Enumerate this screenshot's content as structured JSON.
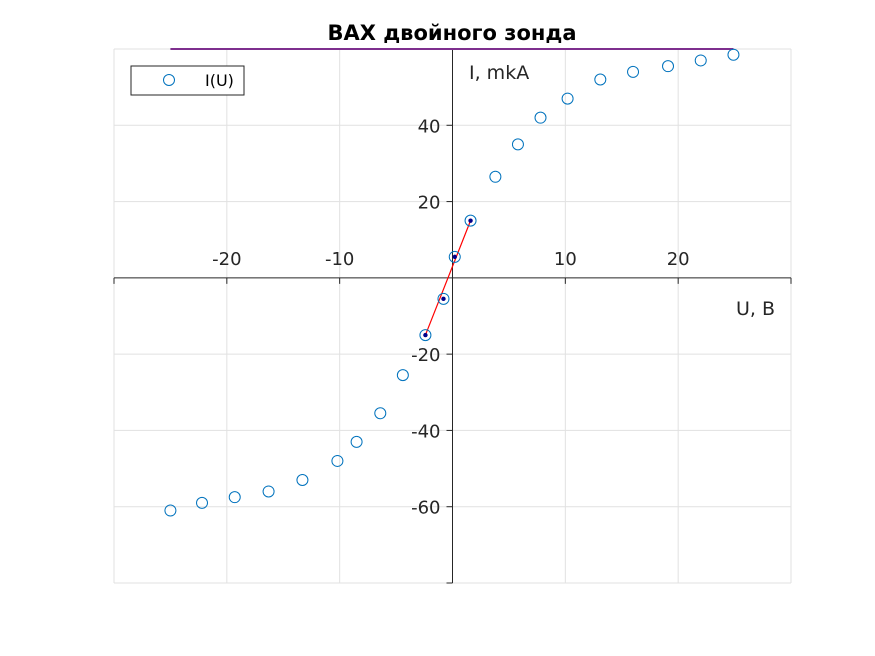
{
  "chart_data": {
    "type": "scatter",
    "title": "ВАХ двойного зонда",
    "xlabel": "U, B",
    "ylabel": "I, mkA",
    "xlim": [
      -30,
      30
    ],
    "ylim": [
      -80,
      60
    ],
    "xticks": [
      -20,
      -10,
      10,
      20
    ],
    "yticks": [
      -60,
      -40,
      -20,
      20,
      40
    ],
    "xtick_labels": [
      "-20",
      "-10",
      "10",
      "20"
    ],
    "ytick_labels": [
      "-60",
      "-40",
      "-20",
      "20",
      "40"
    ],
    "grid": true,
    "legend": {
      "location": "top-left",
      "entries": [
        "I(U)"
      ]
    },
    "series": [
      {
        "name": "I(U)",
        "marker": "circle-open",
        "color": "#0072BD",
        "x": [
          -25,
          -22.2,
          -19.3,
          -16.3,
          -13.3,
          -10.2,
          -8.5,
          -6.4,
          -4.4,
          -2.4,
          -0.8,
          0.2,
          1.6,
          3.8,
          5.8,
          7.8,
          10.2,
          13.1,
          16,
          19.1,
          22,
          24.9
        ],
        "y": [
          -61,
          -59,
          -57.5,
          -56,
          -53,
          -48,
          -43,
          -35.5,
          -25.5,
          -15,
          -5.5,
          5.5,
          15,
          26.5,
          35,
          42,
          47,
          52,
          54,
          55.5,
          57,
          58.5
        ]
      },
      {
        "name": "",
        "marker": "dot",
        "color": "#00008B",
        "x": [
          -2.4,
          -0.8,
          0.2,
          1.6
        ],
        "y": [
          -15,
          -5.5,
          5.5,
          15
        ]
      }
    ],
    "lines": [
      {
        "name": "",
        "color": "#FF0000",
        "x": [
          -2.4,
          1.6
        ],
        "y": [
          -15,
          15
        ]
      },
      {
        "name": "",
        "color": "#7E2F8E",
        "x": [
          -25,
          24.9
        ],
        "y": [
          60,
          60
        ]
      }
    ]
  }
}
